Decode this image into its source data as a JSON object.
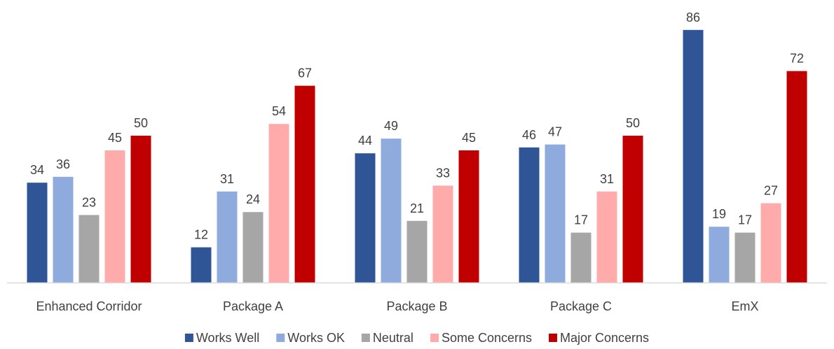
{
  "chart_data": {
    "type": "bar",
    "title": "",
    "xlabel": "",
    "ylabel": "",
    "ylim": [
      0,
      90
    ],
    "grid": false,
    "legend_position": "bottom",
    "categories": [
      "Enhanced Corridor",
      "Package A",
      "Package B",
      "Package C",
      "EmX"
    ],
    "series": [
      {
        "name": "Works Well",
        "color": "#2F5597",
        "values": [
          34,
          12,
          44,
          46,
          86
        ]
      },
      {
        "name": "Works OK",
        "color": "#8FAADC",
        "values": [
          36,
          31,
          49,
          47,
          19
        ]
      },
      {
        "name": "Neutral",
        "color": "#A6A6A6",
        "values": [
          23,
          24,
          21,
          17,
          17
        ]
      },
      {
        "name": "Some Concerns",
        "color": "#FFABAB",
        "values": [
          45,
          54,
          33,
          31,
          27
        ]
      },
      {
        "name": "Major Concerns",
        "color": "#C00000",
        "values": [
          50,
          67,
          45,
          50,
          72
        ]
      }
    ]
  }
}
